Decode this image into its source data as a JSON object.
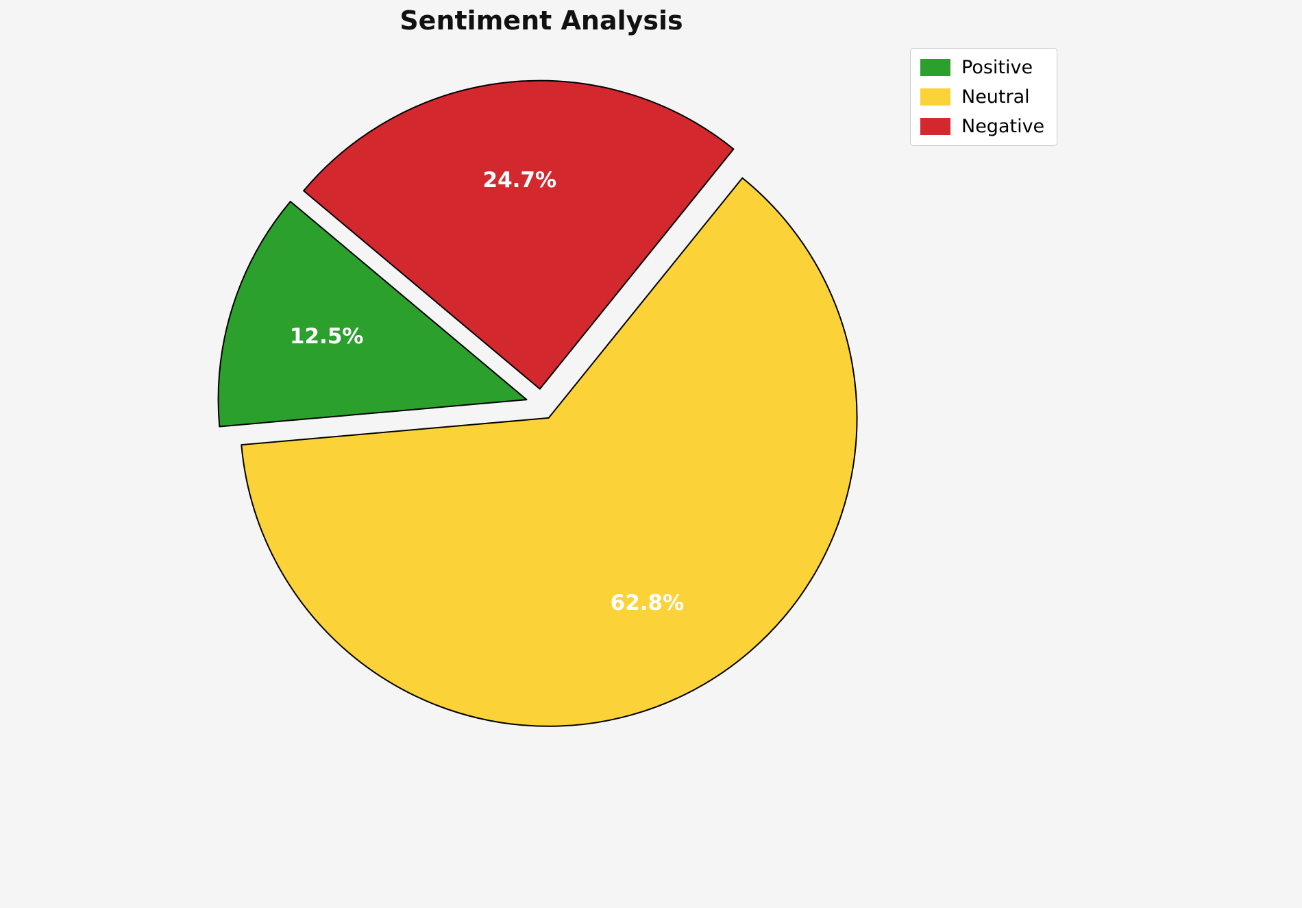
{
  "chart_data": {
    "type": "pie",
    "title": "Sentiment Analysis",
    "labels": [
      "Positive",
      "Neutral",
      "Negative"
    ],
    "values": [
      12.5,
      62.8,
      24.7
    ],
    "value_labels": [
      "12.5%",
      "62.8%",
      "24.7%"
    ],
    "colors": [
      "#2ca02c",
      "#fbd237",
      "#d4282f"
    ],
    "slice_border_color": "#000000",
    "percent_label_color": "#ffffff",
    "start_angle": 140,
    "counterclockwise": true,
    "explode": 0.05,
    "pct_distance": 0.68,
    "legend_position": "upper right",
    "background_color": "#f5f5f5"
  }
}
